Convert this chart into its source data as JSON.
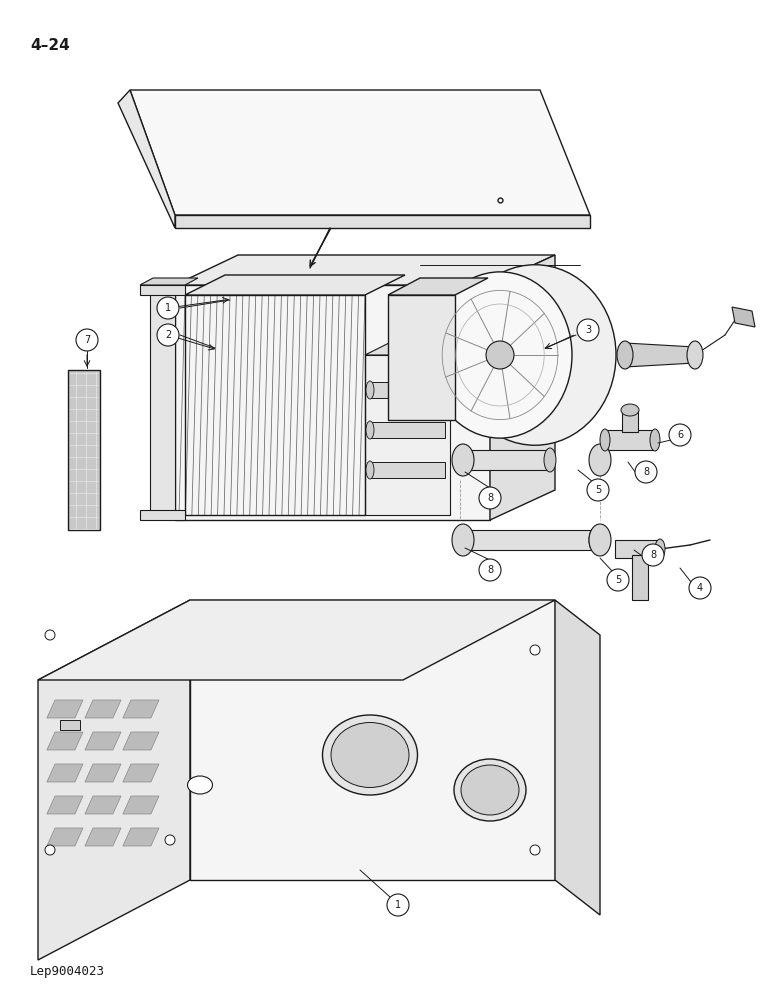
{
  "page_label": "4–24",
  "ref_label": "Lep9004023",
  "background_color": "#ffffff",
  "line_color": "#1a1a1a",
  "fig_width": 7.72,
  "fig_height": 10.0
}
